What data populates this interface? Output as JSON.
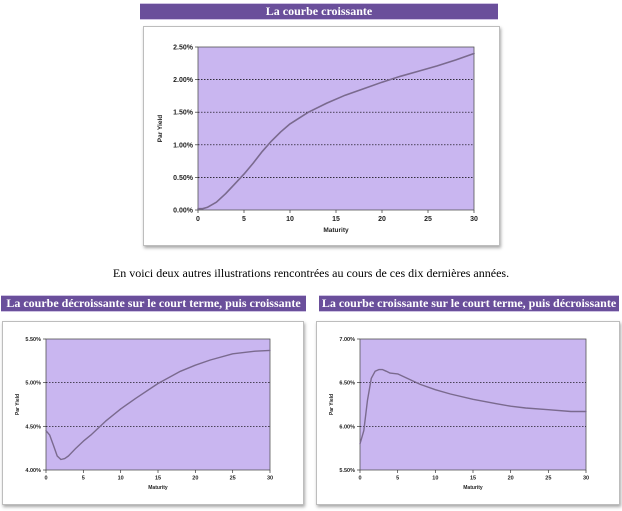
{
  "banners": {
    "top": "La courbe croissante",
    "left": "La courbe décroissante sur le court terme, puis croissante",
    "right": "La courbe croissante sur le court terme, puis décroissante"
  },
  "caption": "En voici deux autres illustrations rencontrées au cours de ces dix dernières années.",
  "colors": {
    "plot_bg": "#c9b6f0",
    "curve": "#7a6a8e",
    "banner": "#6a4f9b",
    "grid": "#000000"
  },
  "chart_data": [
    {
      "type": "line",
      "title": "",
      "xlabel": "Maturity",
      "ylabel": "Par Yield",
      "xlim": [
        0,
        30
      ],
      "ylim": [
        0,
        2.5
      ],
      "xticks": [
        "0",
        "5",
        "10",
        "15",
        "20",
        "25",
        "30"
      ],
      "yticks": [
        "0.00%",
        "0.50%",
        "1.00%",
        "1.50%",
        "2.00%",
        "2.50%"
      ],
      "grid": "horizontal dotted",
      "series": [
        {
          "x": [
            0,
            0.5,
            1,
            2,
            3,
            4,
            5,
            6,
            7,
            8,
            9,
            10,
            12,
            14,
            16,
            18,
            20,
            22,
            24,
            26,
            28,
            30
          ],
          "y": [
            0.02,
            0.02,
            0.04,
            0.12,
            0.25,
            0.4,
            0.55,
            0.72,
            0.9,
            1.06,
            1.2,
            1.32,
            1.5,
            1.64,
            1.76,
            1.86,
            1.96,
            2.05,
            2.13,
            2.21,
            2.3,
            2.4
          ]
        }
      ]
    },
    {
      "type": "line",
      "title": "",
      "xlabel": "Maturity",
      "ylabel": "Par Yield",
      "xlim": [
        0,
        30
      ],
      "ylim": [
        4.0,
        5.5
      ],
      "xticks": [
        "0",
        "5",
        "10",
        "15",
        "20",
        "25",
        "30"
      ],
      "yticks": [
        "4.00%",
        "4.50%",
        "5.00%",
        "5.50%"
      ],
      "grid": "horizontal dotted",
      "series": [
        {
          "x": [
            0,
            0.5,
            1,
            1.5,
            2,
            2.5,
            3,
            4,
            5,
            6,
            8,
            10,
            12,
            15,
            18,
            20,
            22,
            25,
            28,
            30
          ],
          "y": [
            4.45,
            4.4,
            4.28,
            4.16,
            4.12,
            4.13,
            4.16,
            4.25,
            4.33,
            4.4,
            4.56,
            4.7,
            4.82,
            4.99,
            5.13,
            5.2,
            5.26,
            5.33,
            5.36,
            5.37
          ]
        }
      ]
    },
    {
      "type": "line",
      "title": "",
      "xlabel": "Maturity",
      "ylabel": "Par Yield",
      "xlim": [
        0,
        30
      ],
      "ylim": [
        5.5,
        7.0
      ],
      "xticks": [
        "0",
        "5",
        "10",
        "15",
        "20",
        "25",
        "30"
      ],
      "yticks": [
        "5.50%",
        "6.00%",
        "6.50%",
        "7.00%"
      ],
      "grid": "horizontal dotted",
      "series": [
        {
          "x": [
            0,
            0.5,
            1,
            1.5,
            2,
            2.5,
            3,
            3.5,
            4,
            5,
            6,
            7,
            8,
            10,
            12,
            15,
            18,
            20,
            22,
            25,
            28,
            30
          ],
          "y": [
            5.8,
            5.95,
            6.3,
            6.55,
            6.63,
            6.65,
            6.65,
            6.63,
            6.61,
            6.6,
            6.56,
            6.52,
            6.48,
            6.42,
            6.37,
            6.31,
            6.26,
            6.23,
            6.21,
            6.19,
            6.17,
            6.17
          ]
        }
      ]
    }
  ]
}
